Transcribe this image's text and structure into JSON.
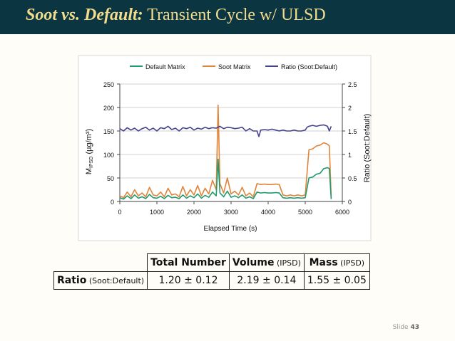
{
  "slide": {
    "title_bold": "Soot vs. Default:",
    "title_rest": "Transient Cycle w/ ULSD",
    "footer_label": "Slide",
    "footer_number": "43"
  },
  "colors": {
    "header_bg": "#0c3542",
    "title_text": "#f2dc8c",
    "default_matrix": "#1f9a6e",
    "soot_matrix": "#e0843a",
    "ratio": "#46448c"
  },
  "chart_data": {
    "type": "line",
    "xlabel": "Elapsed Time (s)",
    "ylabel_left": "M",
    "ylabel_left_sub": "IPSD",
    "ylabel_left_units": " (µg/m³)",
    "ylabel_right": "Ratio (Soot:Default)",
    "xlim": [
      0,
      6000
    ],
    "ylim_left": [
      0,
      250
    ],
    "ylim_right": [
      0,
      2.5
    ],
    "x_ticks": [
      "0",
      "1000",
      "2000",
      "3000",
      "4000",
      "5000",
      "6000"
    ],
    "y_left_ticks": [
      "0",
      "50",
      "100",
      "150",
      "200",
      "250"
    ],
    "y_right_ticks": [
      "0",
      "0.5",
      "1",
      "1.5",
      "2",
      "2.5"
    ],
    "legend_position": "top",
    "series": [
      {
        "name": "Default Matrix",
        "axis": "left",
        "x": [
          0,
          100,
          200,
          300,
          400,
          500,
          600,
          700,
          800,
          900,
          1000,
          1100,
          1200,
          1300,
          1400,
          1500,
          1600,
          1700,
          1800,
          1900,
          2000,
          2100,
          2200,
          2300,
          2400,
          2500,
          2600,
          2650,
          2700,
          2800,
          2900,
          3000,
          3100,
          3200,
          3300,
          3400,
          3500,
          3600,
          3700,
          3800,
          3900,
          4000,
          4100,
          4200,
          4300,
          4400,
          4500,
          4600,
          4700,
          4800,
          4900,
          5000,
          5100,
          5200,
          5300,
          5400,
          5500,
          5600,
          5650,
          5700
        ],
        "y": [
          8,
          5,
          12,
          6,
          14,
          7,
          10,
          6,
          15,
          8,
          7,
          11,
          6,
          13,
          8,
          9,
          6,
          14,
          7,
          12,
          8,
          16,
          7,
          13,
          9,
          20,
          12,
          90,
          18,
          10,
          22,
          9,
          12,
          8,
          14,
          7,
          10,
          6,
          20,
          18,
          19,
          18,
          18,
          19,
          18,
          8,
          7,
          8,
          7,
          8,
          7,
          8,
          50,
          52,
          58,
          60,
          70,
          72,
          70,
          5
        ]
      },
      {
        "name": "Soot Matrix",
        "axis": "left",
        "x": [
          0,
          100,
          200,
          300,
          400,
          500,
          600,
          700,
          800,
          900,
          1000,
          1100,
          1200,
          1300,
          1400,
          1500,
          1600,
          1700,
          1800,
          1900,
          2000,
          2100,
          2200,
          2300,
          2400,
          2500,
          2600,
          2650,
          2700,
          2800,
          2900,
          3000,
          3100,
          3200,
          3300,
          3400,
          3500,
          3600,
          3700,
          3800,
          3900,
          4000,
          4100,
          4200,
          4300,
          4400,
          4500,
          4600,
          4700,
          4800,
          4900,
          5000,
          5100,
          5200,
          5300,
          5400,
          5500,
          5600,
          5650,
          5700
        ],
        "y": [
          12,
          8,
          20,
          10,
          25,
          12,
          18,
          10,
          30,
          14,
          12,
          20,
          10,
          28,
          14,
          16,
          10,
          32,
          12,
          25,
          14,
          34,
          12,
          28,
          16,
          45,
          25,
          205,
          38,
          18,
          50,
          16,
          22,
          14,
          30,
          12,
          18,
          10,
          38,
          36,
          37,
          36,
          36,
          37,
          36,
          14,
          12,
          14,
          12,
          14,
          12,
          14,
          110,
          112,
          118,
          120,
          125,
          122,
          118,
          8
        ]
      },
      {
        "name": "Ratio (Soot:Default)",
        "axis": "right",
        "x": [
          0,
          100,
          200,
          300,
          400,
          500,
          600,
          700,
          800,
          900,
          1000,
          1100,
          1200,
          1300,
          1400,
          1500,
          1600,
          1700,
          1800,
          1900,
          2000,
          2100,
          2200,
          2300,
          2400,
          2500,
          2600,
          2700,
          2800,
          2900,
          3000,
          3100,
          3200,
          3300,
          3400,
          3500,
          3600,
          3700,
          3750,
          3800,
          3900,
          4000,
          4100,
          4200,
          4300,
          4400,
          4500,
          4600,
          4700,
          4800,
          4900,
          5000,
          5050,
          5100,
          5200,
          5300,
          5400,
          5500,
          5600,
          5650,
          5700
        ],
        "y": [
          1.55,
          1.5,
          1.57,
          1.52,
          1.56,
          1.5,
          1.55,
          1.58,
          1.52,
          1.56,
          1.5,
          1.57,
          1.55,
          1.6,
          1.53,
          1.56,
          1.5,
          1.57,
          1.55,
          1.58,
          1.52,
          1.56,
          1.54,
          1.58,
          1.55,
          1.57,
          1.56,
          1.6,
          1.55,
          1.58,
          1.57,
          1.55,
          1.56,
          1.58,
          1.5,
          1.55,
          1.5,
          1.5,
          1.38,
          1.52,
          1.53,
          1.52,
          1.54,
          1.52,
          1.5,
          1.52,
          1.5,
          1.5,
          1.52,
          1.5,
          1.5,
          1.52,
          1.58,
          1.6,
          1.62,
          1.6,
          1.62,
          1.63,
          1.6,
          1.5,
          1.6
        ]
      }
    ]
  },
  "table": {
    "header": [
      {
        "main": "Total Number",
        "sub": ""
      },
      {
        "main": "Volume",
        "sub": " (IPSD)"
      },
      {
        "main": "Mass",
        "sub": " (IPSD)"
      }
    ],
    "row_label_main": "Ratio",
    "row_label_sub": " (Soot:Default)",
    "values": [
      "1.20 ± 0.12",
      "2.19 ± 0.14",
      "1.55 ± 0.05"
    ]
  }
}
